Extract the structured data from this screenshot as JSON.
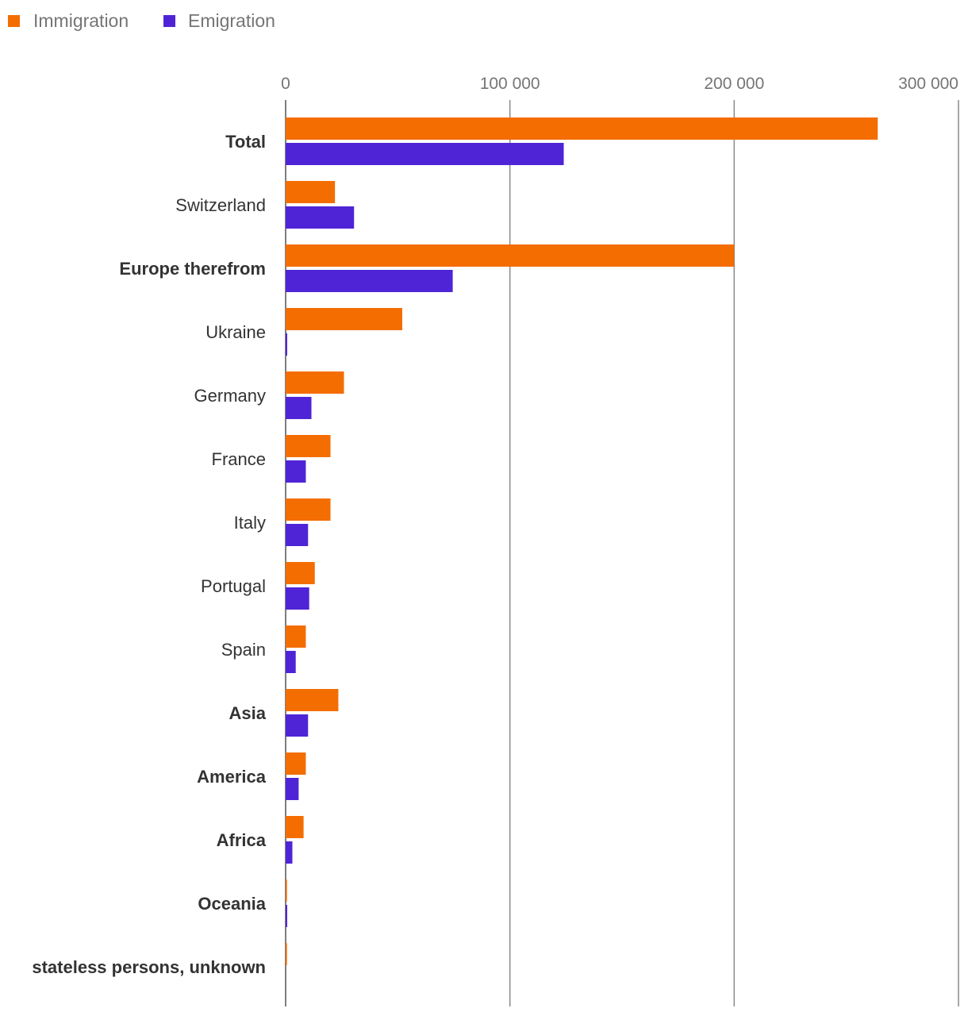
{
  "chart_data": {
    "type": "bar",
    "orientation": "horizontal",
    "title": "",
    "xlabel": "",
    "ylabel": "",
    "xlim": [
      0,
      300000
    ],
    "ticks": [
      {
        "value": 0,
        "label": "0"
      },
      {
        "value": 100000,
        "label": "100 000"
      },
      {
        "value": 200000,
        "label": "200 000"
      },
      {
        "value": 300000,
        "label": "300 000"
      }
    ],
    "grid": true,
    "legend_position": "top-left",
    "categories": [
      {
        "label": "Total",
        "bold": true
      },
      {
        "label": "Switzerland",
        "bold": false
      },
      {
        "label": "Europe therefrom",
        "bold": true
      },
      {
        "label": "Ukraine",
        "bold": false
      },
      {
        "label": "Germany",
        "bold": false
      },
      {
        "label": "France",
        "bold": false
      },
      {
        "label": "Italy",
        "bold": false
      },
      {
        "label": "Portugal",
        "bold": false
      },
      {
        "label": "Spain",
        "bold": false
      },
      {
        "label": "Asia",
        "bold": true
      },
      {
        "label": "America",
        "bold": true
      },
      {
        "label": "Africa",
        "bold": true
      },
      {
        "label": "Oceania",
        "bold": true
      },
      {
        "label": "stateless persons, unknown",
        "bold": true
      }
    ],
    "series": [
      {
        "name": "Immigration",
        "color": "#f46d00",
        "values": [
          264000,
          22000,
          200000,
          52000,
          26000,
          20000,
          20000,
          13000,
          9000,
          23500,
          9000,
          8000,
          600,
          600
        ]
      },
      {
        "name": "Emigration",
        "color": "#4f24d6",
        "values": [
          124000,
          30500,
          74500,
          700,
          11500,
          9000,
          10000,
          10500,
          4500,
          10000,
          5800,
          3000,
          700,
          0
        ]
      }
    ]
  }
}
